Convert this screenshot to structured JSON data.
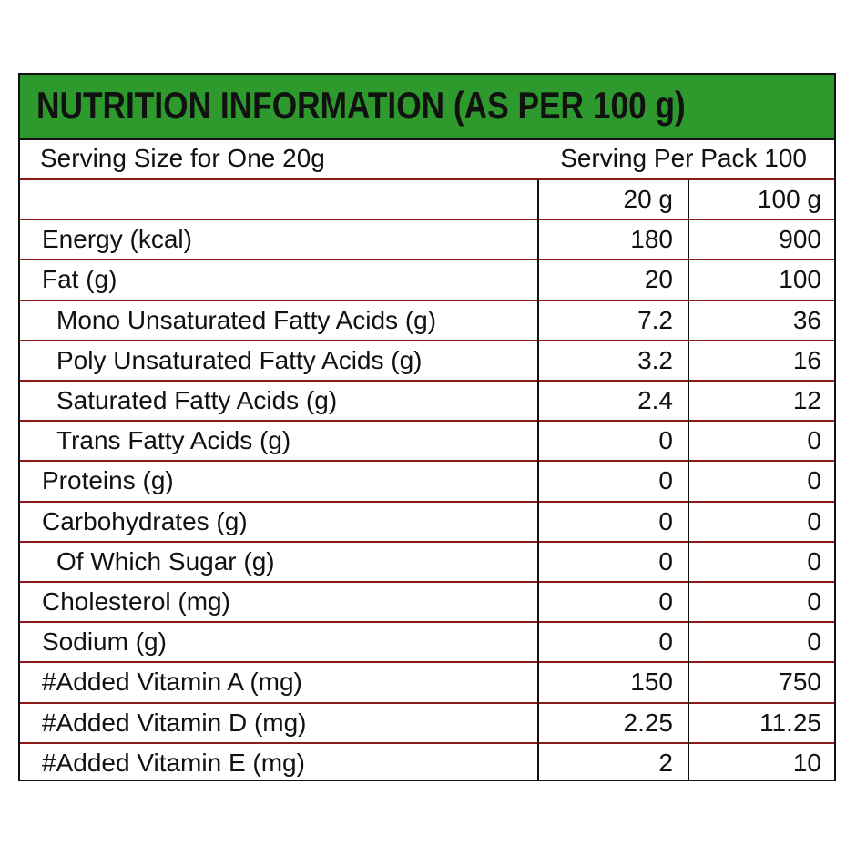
{
  "header": {
    "title": "NUTRITION INFORMATION (AS PER 100 g)"
  },
  "serving": {
    "size": "Serving Size for One 20g",
    "per_pack": "Serving Per Pack 100"
  },
  "table": {
    "columns": [
      "20 g",
      "100 g"
    ],
    "rows": [
      {
        "label": "Energy (kcal)",
        "sub": false,
        "values": [
          180,
          900
        ]
      },
      {
        "label": "Fat (g)",
        "sub": false,
        "values": [
          20,
          100
        ]
      },
      {
        "label": "Mono Unsaturated Fatty Acids (g)",
        "sub": true,
        "values": [
          7.2,
          36
        ]
      },
      {
        "label": "Poly Unsaturated Fatty Acids (g)",
        "sub": true,
        "values": [
          3.2,
          16
        ]
      },
      {
        "label": "Saturated Fatty Acids (g)",
        "sub": true,
        "values": [
          2.4,
          12
        ]
      },
      {
        "label": "Trans Fatty Acids (g)",
        "sub": true,
        "values": [
          0,
          0
        ]
      },
      {
        "label": "Proteins (g)",
        "sub": false,
        "values": [
          0,
          0
        ]
      },
      {
        "label": "Carbohydrates (g)",
        "sub": false,
        "values": [
          0,
          0
        ]
      },
      {
        "label": "Of Which Sugar (g)",
        "sub": true,
        "values": [
          0,
          0
        ]
      },
      {
        "label": "Cholesterol (mg)",
        "sub": false,
        "values": [
          0,
          0
        ]
      },
      {
        "label": "Sodium (g)",
        "sub": false,
        "values": [
          0,
          0
        ]
      },
      {
        "label": "#Added Vitamin A (mg)",
        "sub": false,
        "values": [
          150,
          750
        ]
      },
      {
        "label": "#Added Vitamin D (mg)",
        "sub": false,
        "values": [
          2.25,
          11.25
        ]
      },
      {
        "label": "#Added Vitamin E (mg)",
        "sub": false,
        "values": [
          2,
          10
        ]
      }
    ]
  }
}
